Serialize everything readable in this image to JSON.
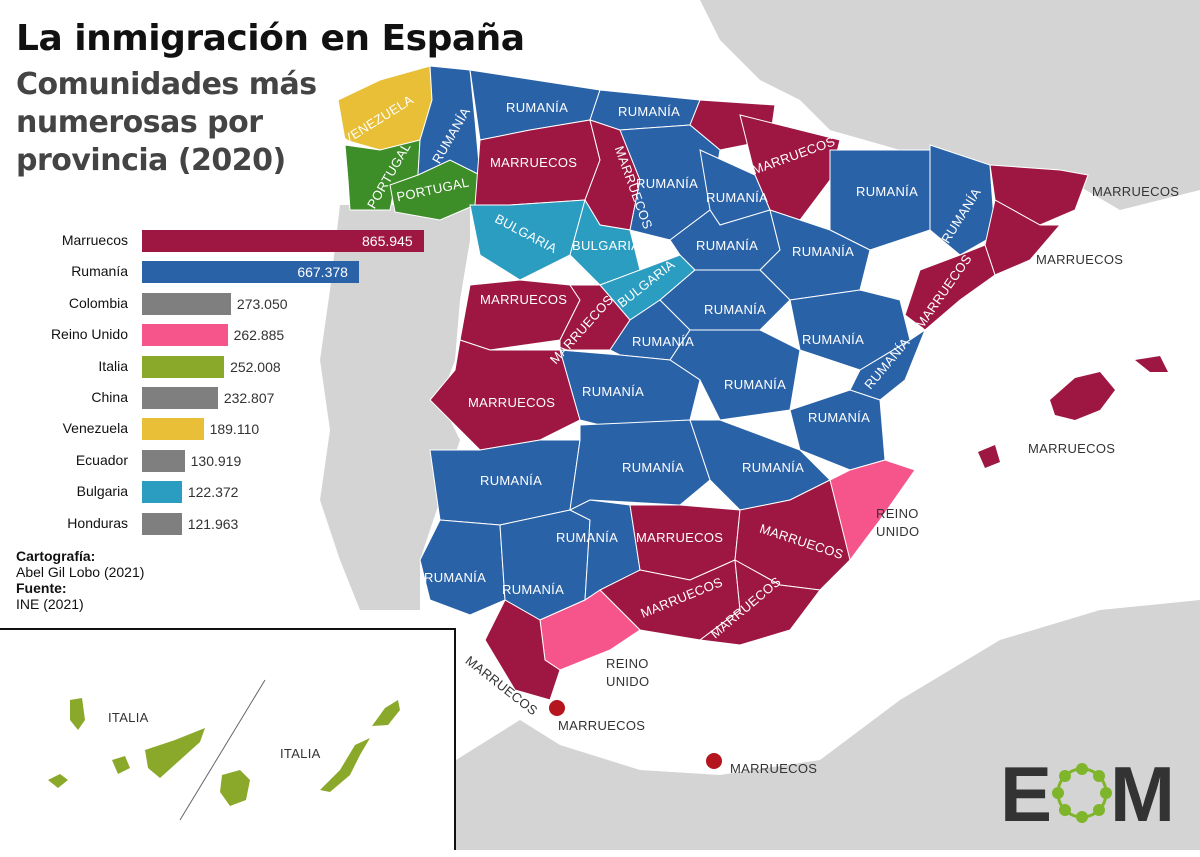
{
  "title": "La inmigración en España",
  "subtitle": "Comunidades más numerosas por provincia (2020)",
  "colors": {
    "Marruecos": "#9e1743",
    "Rumanía": "#2a62a8",
    "Colombia": "#7f7f7f",
    "Reino Unido": "#f5558a",
    "Italia": "#8aa92a",
    "China": "#7f7f7f",
    "Venezuela": "#e8bf36",
    "Ecuador": "#7f7f7f",
    "Bulgaria": "#2b9dc1",
    "Honduras": "#7f7f7f",
    "Portugal": "#3d8d28",
    "sea": "#ffffff",
    "land_other": "#d4d4d4"
  },
  "chart_data": {
    "type": "bar",
    "orientation": "horizontal",
    "categories": [
      "Marruecos",
      "Rumanía",
      "Colombia",
      "Reino Unido",
      "Italia",
      "China",
      "Venezuela",
      "Ecuador",
      "Bulgaria",
      "Honduras"
    ],
    "values": [
      865945,
      667378,
      273050,
      262885,
      252008,
      232807,
      189110,
      130919,
      122372,
      121963
    ],
    "value_labels": [
      "865.945",
      "667.378",
      "273.050",
      "262.885",
      "252.008",
      "232.807",
      "189.110",
      "130.919",
      "122.372",
      "121.963"
    ]
  },
  "credits": {
    "cartografia_label": "Cartografía:",
    "cartografia_value": "Abel Gil Lobo (2021)",
    "fuente_label": "Fuente:",
    "fuente_value": "INE (2021)"
  },
  "map_labels": {
    "venezuela": "VENEZUELA",
    "portugal_1": "PORTUGAL",
    "portugal_2": "PORTUGAL",
    "rumania_lugo": "RUMANÍA",
    "rumania_asturias": "RUMANÍA",
    "rumania_cantabria": "RUMANÍA",
    "marruecos_leon": "MARRUECOS",
    "marruecos_palencia": "MARRUECOS",
    "rumania_burgos": "RUMANÍA",
    "rumania_alava": "RUMANÍA",
    "marruecos_navarra": "MARRUECOS",
    "rumania_huesca": "RUMANÍA",
    "rumania_lleida": "RUMANÍA",
    "marruecos_girona": "MARRUECOS",
    "marruecos_barcelona": "MARRUECOS",
    "bulgaria_zamora": "BULGARIA",
    "bulgaria_valladolid": "BULGARIA",
    "bulgaria_segovia": "BULGARIA",
    "rumania_soria": "RUMANÍA",
    "rumania_zaragoza": "RUMANÍA",
    "marruecos_tarragona": "MARRUECOS",
    "marruecos_salamanca": "MARRUECOS",
    "marruecos_avila": "MARRUECOS",
    "rumania_guadalajara": "RUMANÍA",
    "rumania_teruel": "RUMANÍA",
    "rumania_madrid": "RUMANÍA",
    "rumania_castellon": "RUMANÍA",
    "marruecos_caceres": "MARRUECOS",
    "rumania_toledo": "RUMANÍA",
    "rumania_cuenca": "RUMANÍA",
    "rumania_valencia": "RUMANÍA",
    "rumania_badajoz": "RUMANÍA",
    "rumania_ciudadreal": "RUMANÍA",
    "rumania_albacete": "RUMANÍA",
    "reino_unido_alicante_1": "REINO",
    "reino_unido_alicante_2": "UNIDO",
    "rumania_cordoba": "RUMANÍA",
    "marruecos_jaen": "MARRUECOS",
    "marruecos_murcia": "MARRUECOS",
    "rumania_huelva": "RUMANÍA",
    "rumania_sevilla": "RUMANÍA",
    "marruecos_granada": "MARRUECOS",
    "marruecos_almeria": "MARRUECOS",
    "marruecos_cadiz": "MARRUECOS",
    "reino_unido_malaga_1": "REINO",
    "reino_unido_malaga_2": "UNIDO",
    "marruecos_ceuta": "MARRUECOS",
    "marruecos_melilla": "MARRUECOS",
    "marruecos_baleares": "MARRUECOS",
    "italia_tenerife": "ITALIA",
    "italia_laspalmas": "ITALIA"
  },
  "logo": {
    "text": "EOM",
    "letter_e": "E",
    "letter_m": "M"
  }
}
